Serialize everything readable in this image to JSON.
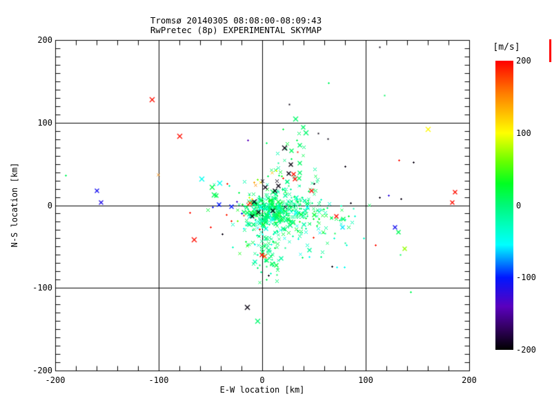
{
  "window": {
    "background": "#ffffff"
  },
  "chart_data": {
    "type": "scatter",
    "title": "Tromsø 20140305 08:08:00-08:09:43",
    "subtitle": "RwPretec (8p) EXPERIMENTAL SKYMAP",
    "xlabel": "E-W location [km]",
    "ylabel": "N-S location [km]",
    "xlim": [
      -200,
      200
    ],
    "ylim": [
      -200,
      200
    ],
    "xticks": [
      -200,
      -100,
      0,
      100,
      200
    ],
    "yticks": [
      -200,
      -100,
      0,
      100,
      200
    ],
    "x_minor_step": 20,
    "y_minor_step": 10,
    "grid_lines": {
      "x": [
        -100,
        0,
        100
      ],
      "y": [
        -100,
        0,
        100
      ]
    },
    "grid": true,
    "marker": "x",
    "axis_color": "#000000",
    "colorbar": {
      "label": "[m/s]",
      "min": -200,
      "max": 200,
      "ticks": [
        200,
        100,
        0,
        -100,
        -200
      ],
      "stops": [
        [
          -200,
          "#000000"
        ],
        [
          -170,
          "#32005F"
        ],
        [
          -140,
          "#5A00BE"
        ],
        [
          -100,
          "#0017FF"
        ],
        [
          -55,
          "#00FFFF"
        ],
        [
          -30,
          "#00FFC3"
        ],
        [
          0,
          "#00F878"
        ],
        [
          30,
          "#00FF21"
        ],
        [
          60,
          "#66FF00"
        ],
        [
          100,
          "#FFFF00"
        ],
        [
          155,
          "#FF7D00"
        ],
        [
          200,
          "#FF0000"
        ]
      ]
    },
    "points": [
      [
        -107,
        128,
        195,
        7
      ],
      [
        -80,
        84,
        195,
        7
      ],
      [
        -190,
        36,
        10,
        3
      ],
      [
        -100.7,
        37,
        150,
        4
      ],
      [
        -160,
        18,
        -110,
        6
      ],
      [
        -156,
        4,
        -115,
        6
      ],
      [
        -59,
        32,
        -48,
        7
      ],
      [
        -41.5,
        27,
        -50,
        7
      ],
      [
        -49,
        22,
        15,
        7
      ],
      [
        -34,
        26,
        190,
        3
      ],
      [
        -47,
        13,
        12,
        7
      ],
      [
        -45,
        12,
        15,
        6
      ],
      [
        -42,
        1,
        -100,
        6
      ],
      [
        -48,
        -2,
        -105,
        3
      ],
      [
        -30,
        -1,
        -100,
        6
      ],
      [
        -70,
        -9,
        195,
        3
      ],
      [
        -35,
        -11,
        190,
        3
      ],
      [
        -30,
        -19,
        190,
        3
      ],
      [
        -24,
        -19,
        60,
        3
      ],
      [
        -50,
        -26,
        195,
        3
      ],
      [
        -39,
        -35,
        -195,
        3
      ],
      [
        -18,
        -28,
        -52,
        3
      ],
      [
        -66,
        -41,
        195,
        7
      ],
      [
        -16,
        -44,
        20,
        3
      ],
      [
        -14,
        79,
        -140,
        3
      ],
      [
        -15,
        -123,
        -195,
        7
      ],
      [
        -5,
        -140,
        3,
        7
      ],
      [
        113,
        192,
        -195,
        2
      ],
      [
        64,
        148,
        8,
        3
      ],
      [
        118,
        133,
        8,
        2
      ],
      [
        26,
        122,
        -195,
        2
      ],
      [
        32,
        105,
        5,
        7
      ],
      [
        160,
        92,
        103,
        7
      ],
      [
        39,
        95,
        6,
        6
      ],
      [
        42,
        88,
        4,
        7
      ],
      [
        35,
        87,
        8,
        5
      ],
      [
        20,
        92,
        18,
        3
      ],
      [
        54,
        87,
        -195,
        2
      ],
      [
        33,
        79,
        12,
        3
      ],
      [
        63,
        81,
        -195,
        2
      ],
      [
        36,
        73,
        6,
        6
      ],
      [
        21,
        70,
        -195,
        7
      ],
      [
        28,
        66,
        10,
        6
      ],
      [
        34,
        65,
        190,
        2
      ],
      [
        132,
        55,
        195,
        3
      ],
      [
        146,
        52,
        -195,
        3
      ],
      [
        28,
        56,
        12,
        3
      ],
      [
        27,
        50,
        -195,
        6
      ],
      [
        36,
        51,
        8,
        6
      ],
      [
        80,
        47,
        -195,
        3
      ],
      [
        25,
        39,
        -195,
        6
      ],
      [
        30,
        38,
        195,
        6
      ],
      [
        36,
        40,
        6,
        6
      ],
      [
        31,
        32,
        195,
        6
      ],
      [
        35,
        33,
        8,
        6
      ],
      [
        15,
        24,
        -195,
        6
      ],
      [
        20,
        33,
        190,
        3
      ],
      [
        47,
        18,
        195,
        6
      ],
      [
        50,
        26,
        -195,
        3
      ],
      [
        85,
        3,
        -195,
        3
      ],
      [
        113,
        10,
        -195,
        3
      ],
      [
        122,
        12,
        -120,
        3
      ],
      [
        134,
        8,
        -195,
        3
      ],
      [
        186,
        16,
        195,
        6
      ],
      [
        183,
        4,
        195,
        6
      ],
      [
        71,
        -13,
        195,
        6
      ],
      [
        78,
        -16,
        12,
        6
      ],
      [
        83,
        -13,
        18,
        3
      ],
      [
        77,
        -26,
        -60,
        6
      ],
      [
        128,
        -26,
        -110,
        6
      ],
      [
        131,
        -32,
        12,
        6
      ],
      [
        109,
        -48,
        195,
        3
      ],
      [
        137,
        -52,
        72,
        6
      ],
      [
        133,
        -60,
        8,
        2
      ],
      [
        67,
        -74,
        -195,
        3
      ],
      [
        72,
        -75,
        -55,
        3
      ],
      [
        79,
        -75,
        -50,
        3
      ],
      [
        143,
        -105,
        12,
        3
      ],
      [
        98,
        -40,
        -30,
        3
      ],
      [
        45,
        -62,
        -52,
        3
      ],
      [
        49,
        -39,
        190,
        3
      ],
      [
        6,
        -85,
        -195,
        3
      ],
      [
        4,
        -90,
        12,
        3
      ],
      [
        -10,
        -13,
        -195,
        6
      ],
      [
        -18,
        -12,
        195,
        2
      ],
      [
        2,
        -61,
        168,
        6
      ],
      [
        -1,
        -60,
        195,
        6
      ],
      [
        -3,
        -29,
        195,
        3
      ],
      [
        -8,
        5,
        -195,
        7
      ],
      [
        3,
        22,
        -195,
        6
      ],
      [
        12,
        18,
        -195,
        6
      ],
      [
        -4,
        -8,
        -195,
        6
      ],
      [
        10,
        -6,
        -195,
        6
      ],
      [
        22,
        -2,
        -195,
        5
      ],
      [
        0,
        30,
        -195,
        5
      ],
      [
        14,
        30,
        -195,
        5
      ],
      [
        -12,
        3,
        172,
        6
      ],
      [
        -14,
        1,
        195,
        5
      ],
      [
        -7,
        25,
        148,
        4
      ],
      [
        -2,
        28,
        108,
        4
      ],
      [
        -5,
        31,
        62,
        3
      ],
      [
        -2,
        -2,
        -55,
        6
      ],
      [
        3,
        -5,
        -50,
        5
      ],
      [
        7,
        -12,
        -46,
        4
      ],
      [
        -6,
        -20,
        -50,
        5
      ],
      [
        16,
        -3,
        -42,
        4
      ],
      [
        2,
        8,
        -46,
        4
      ],
      [
        28,
        -8,
        -46,
        5
      ],
      [
        43,
        -2,
        -50,
        6
      ],
      [
        55,
        -5,
        -46,
        4
      ],
      [
        33,
        -25,
        -46,
        4
      ],
      [
        21,
        -40,
        -50,
        4
      ],
      [
        12,
        -33,
        -46,
        4
      ],
      [
        -20,
        -10,
        -110,
        3
      ],
      [
        -25,
        5,
        -130,
        3
      ],
      [
        -10,
        8,
        108,
        3
      ],
      [
        -13,
        10,
        82,
        3
      ],
      [
        9,
        40,
        128,
        4
      ],
      [
        13,
        42,
        100,
        3
      ],
      [
        -8,
        28,
        140,
        3
      ]
    ],
    "cluster_seed": 42,
    "cluster_groups": [
      {
        "n": 230,
        "cx": 8,
        "cy": -6,
        "sx": 11,
        "sy": 10,
        "v_mean": 2,
        "v_sd": 16,
        "s_min": 2,
        "s_max": 7
      },
      {
        "n": 120,
        "cx": 18,
        "cy": -18,
        "sx": 26,
        "sy": 22,
        "v_mean": -6,
        "v_sd": 24,
        "s_min": 2,
        "s_max": 6
      },
      {
        "n": 70,
        "cx": 8,
        "cy": -52,
        "sx": 10,
        "sy": 18,
        "v_mean": 2,
        "v_sd": 14,
        "s_min": 2,
        "s_max": 6
      },
      {
        "n": 45,
        "cx": 30,
        "cy": 25,
        "sx": 14,
        "sy": 22,
        "v_mean": 4,
        "v_sd": 14,
        "s_min": 2,
        "s_max": 5
      },
      {
        "n": 45,
        "cx": 55,
        "cy": -18,
        "sx": 22,
        "sy": 18,
        "v_mean": -8,
        "v_sd": 22,
        "s_min": 2,
        "s_max": 5
      },
      {
        "n": 40,
        "cx": 42,
        "cy": -4,
        "sx": 9,
        "sy": 7,
        "v_mean": 0,
        "v_sd": 14,
        "s_min": 2,
        "s_max": 6
      }
    ]
  }
}
